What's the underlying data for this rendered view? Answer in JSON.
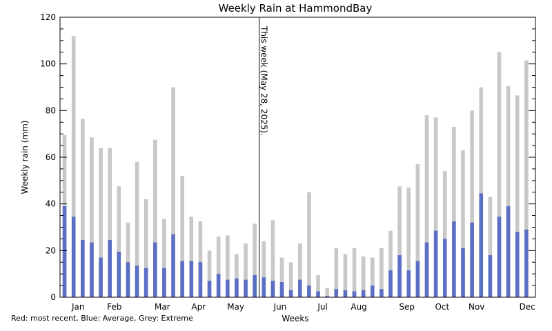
{
  "chart_data": {
    "type": "bar",
    "title": "Weekly Rain at HammondBay",
    "xlabel": "Weeks",
    "ylabel": "Weekly rain (mm)",
    "ylim": [
      0,
      120
    ],
    "yticks": [
      0,
      20,
      40,
      60,
      80,
      100,
      120
    ],
    "x_range_weeks": [
      0.5,
      53
    ],
    "month_labels": [
      "Jan",
      "Feb",
      "Mar",
      "Apr",
      "May",
      "Jun",
      "Jul",
      "Aug",
      "Sep",
      "Oct",
      "Nov",
      "Dec"
    ],
    "month_label_weeks": [
      2.5,
      6.5,
      11.8,
      15.8,
      19.9,
      24.8,
      29.5,
      33.5,
      38.8,
      42.7,
      46.5,
      52.1
    ],
    "current_week_marker": {
      "week": 22.5,
      "label": "This week (May 28, 2025)."
    },
    "legend_note": "Red: most recent, Blue: Average, Grey: Extreme",
    "colors": {
      "average": "#5b6fc4",
      "extreme": "#c8c8c8",
      "recent": "#d00000",
      "marker": "#000000"
    },
    "series": [
      {
        "name": "Extreme",
        "values": [
          69.5,
          112,
          76.5,
          68.5,
          64,
          64,
          47.5,
          32,
          58,
          42,
          67.5,
          33.5,
          90,
          52,
          34.5,
          32.5,
          20,
          26,
          26.5,
          18.5,
          23,
          31.5,
          24,
          33,
          17,
          15,
          23,
          45,
          9.5,
          4,
          21,
          18.5,
          21,
          17.5,
          17,
          21,
          28.5,
          47.5,
          47,
          57,
          78,
          77,
          54,
          73,
          63,
          80,
          90,
          43,
          105,
          90.5,
          86.5,
          101.5
        ]
      },
      {
        "name": "Average",
        "values": [
          39,
          34.5,
          24.5,
          23.5,
          17,
          24.5,
          19.5,
          15,
          13.5,
          12.5,
          23.5,
          12.5,
          27,
          15.5,
          15.5,
          15,
          7,
          10,
          7.5,
          8,
          7.5,
          9.5,
          8.5,
          7,
          6.5,
          3,
          7.5,
          5,
          2.5,
          0.5,
          3.5,
          3,
          2.5,
          3,
          5,
          3.5,
          11.5,
          18,
          11.5,
          15.5,
          23.5,
          28.5,
          25,
          32.5,
          21,
          32,
          44.5,
          18,
          34.5,
          39,
          28,
          29
        ]
      }
    ]
  }
}
